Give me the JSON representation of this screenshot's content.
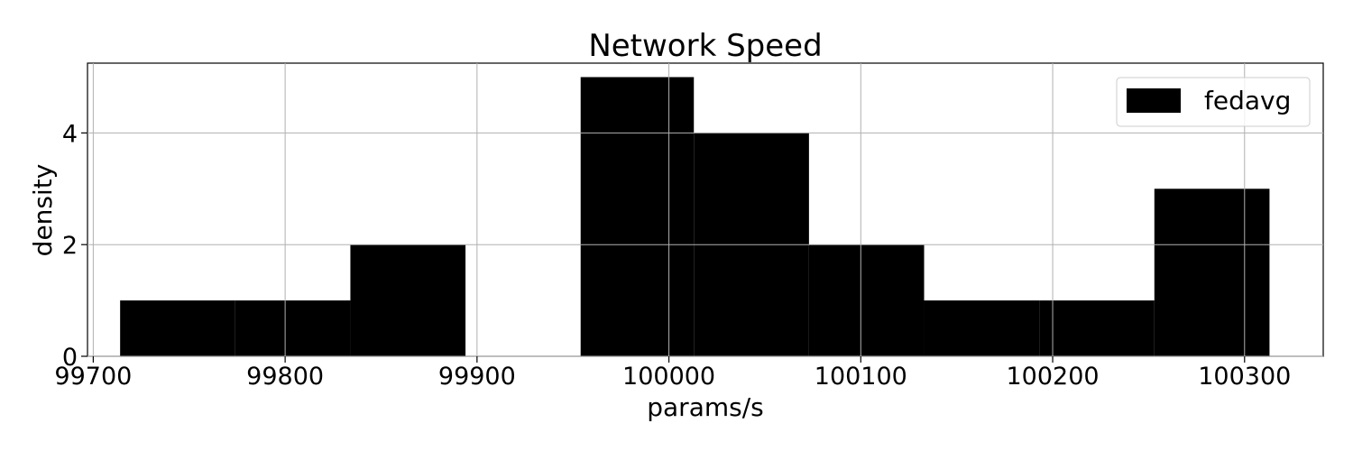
{
  "chart_data": {
    "type": "bar",
    "title": "Network Speed",
    "xlabel": "params/s",
    "ylabel": "density",
    "xlim": [
      99697,
      100341
    ],
    "ylim": [
      0,
      5.25
    ],
    "x_ticks": [
      99700,
      99800,
      99900,
      100000,
      100100,
      100200,
      100300
    ],
    "y_ticks": [
      0,
      2,
      4
    ],
    "grid": true,
    "legend": {
      "placement": "top-right",
      "entries": [
        "fedavg"
      ]
    },
    "bar_color": "#000000",
    "series": [
      {
        "name": "fedavg",
        "bins": [
          {
            "x0": 99714,
            "x1": 99774,
            "value": 1
          },
          {
            "x0": 99774,
            "x1": 99834,
            "value": 1
          },
          {
            "x0": 99834,
            "x1": 99894,
            "value": 2
          },
          {
            "x0": 99894,
            "x1": 99954,
            "value": 0
          },
          {
            "x0": 99954,
            "x1": 100013,
            "value": 5
          },
          {
            "x0": 100013,
            "x1": 100073,
            "value": 4
          },
          {
            "x0": 100073,
            "x1": 100133,
            "value": 2
          },
          {
            "x0": 100133,
            "x1": 100193,
            "value": 1
          },
          {
            "x0": 100193,
            "x1": 100253,
            "value": 1
          },
          {
            "x0": 100253,
            "x1": 100313,
            "value": 3
          }
        ]
      }
    ]
  }
}
